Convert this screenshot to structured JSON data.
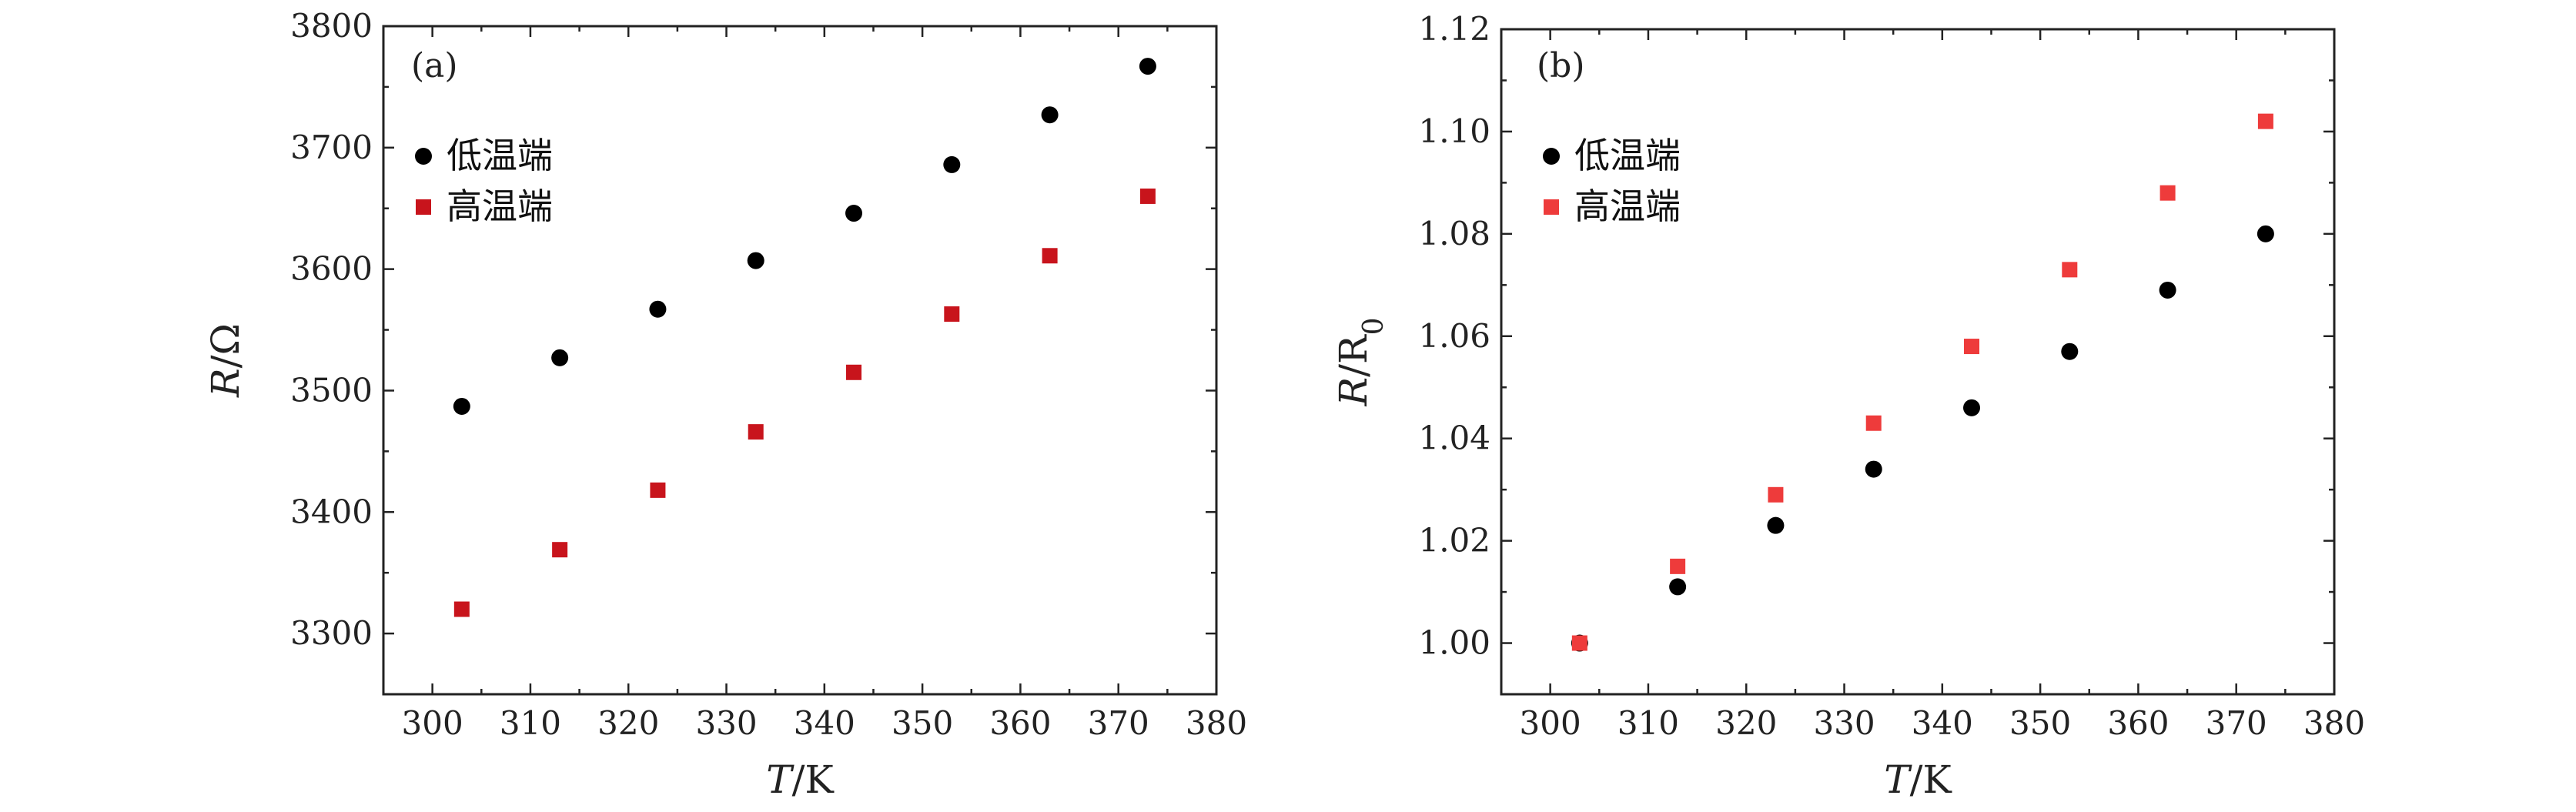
{
  "chart_data": [
    {
      "type": "scatter",
      "panel_label": "(a)",
      "xlabel_italic": "T",
      "xlabel_unit": "/K",
      "ylabel_italic": "R",
      "ylabel_unit": "/Ω",
      "ylabel_sub": "",
      "xlim": [
        295,
        380
      ],
      "ylim": [
        3250,
        3800
      ],
      "xticks": [
        300,
        310,
        320,
        330,
        340,
        350,
        360,
        370,
        380
      ],
      "yticks": [
        3300,
        3400,
        3500,
        3600,
        3700,
        3800
      ],
      "ytick_labels": [
        "3300",
        "3400",
        "3500",
        "3600",
        "3700",
        "3800"
      ],
      "legend_position": "upper-left",
      "series": [
        {
          "name": "低温端",
          "marker": "circle",
          "color": "#000000",
          "x": [
            303,
            313,
            323,
            333,
            343,
            353,
            363,
            373
          ],
          "y": [
            3487,
            3527,
            3567,
            3607,
            3646,
            3686,
            3727,
            3767
          ]
        },
        {
          "name": "高温端",
          "marker": "square",
          "color": "#c8141c",
          "x": [
            303,
            313,
            323,
            333,
            343,
            353,
            363,
            373
          ],
          "y": [
            3320,
            3369,
            3418,
            3466,
            3515,
            3563,
            3611,
            3660
          ]
        }
      ]
    },
    {
      "type": "scatter",
      "panel_label": "(b)",
      "xlabel_italic": "T",
      "xlabel_unit": "/K",
      "ylabel_italic": "R",
      "ylabel_unit": "/R",
      "ylabel_sub": "0",
      "xlim": [
        295,
        380
      ],
      "ylim": [
        0.99,
        1.12
      ],
      "xticks": [
        300,
        310,
        320,
        330,
        340,
        350,
        360,
        370,
        380
      ],
      "yticks": [
        1.0,
        1.02,
        1.04,
        1.06,
        1.08,
        1.1,
        1.12
      ],
      "ytick_labels": [
        "1.00",
        "1.02",
        "1.04",
        "1.06",
        "1.08",
        "1.10",
        "1.12"
      ],
      "legend_position": "upper-left",
      "series": [
        {
          "name": "低温端",
          "marker": "circle",
          "color": "#000000",
          "x": [
            303,
            313,
            323,
            333,
            343,
            353,
            363,
            373
          ],
          "y": [
            1.0,
            1.011,
            1.023,
            1.034,
            1.046,
            1.057,
            1.069,
            1.08
          ]
        },
        {
          "name": "高温端",
          "marker": "square",
          "color": "#ee3b3b",
          "x": [
            303,
            313,
            323,
            333,
            343,
            353,
            363,
            373
          ],
          "y": [
            1.0,
            1.015,
            1.029,
            1.043,
            1.058,
            1.073,
            1.088,
            1.102
          ]
        }
      ]
    }
  ]
}
